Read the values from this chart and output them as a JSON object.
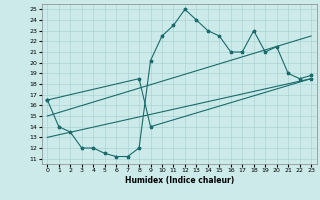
{
  "xlabel": "Humidex (Indice chaleur)",
  "bg_color": "#cceaea",
  "grid_color": "#aad4d4",
  "line_color": "#1a6b6b",
  "xlim": [
    -0.5,
    23.5
  ],
  "ylim": [
    10.5,
    25.5
  ],
  "yticks": [
    11,
    12,
    13,
    14,
    15,
    16,
    17,
    18,
    19,
    20,
    21,
    22,
    23,
    24,
    25
  ],
  "xticks": [
    0,
    1,
    2,
    3,
    4,
    5,
    6,
    7,
    8,
    9,
    10,
    11,
    12,
    13,
    14,
    15,
    16,
    17,
    18,
    19,
    20,
    21,
    22,
    23
  ],
  "curve1_x": [
    0,
    1,
    2,
    3,
    4,
    5,
    6,
    7,
    8,
    9,
    10,
    11,
    12,
    13,
    14,
    15,
    16,
    17,
    18,
    19,
    20,
    21,
    22,
    23
  ],
  "curve1_y": [
    16.5,
    14.0,
    13.5,
    12.0,
    12.0,
    11.5,
    11.2,
    11.2,
    12.0,
    20.2,
    22.5,
    23.5,
    25.0,
    24.0,
    23.0,
    22.5,
    21.0,
    21.0,
    23.0,
    21.0,
    21.5,
    19.0,
    18.5,
    18.8
  ],
  "curve2_x": [
    0,
    8,
    9,
    23
  ],
  "curve2_y": [
    16.5,
    18.5,
    14.0,
    18.5
  ],
  "line1_x": [
    0,
    23
  ],
  "line1_y": [
    15.0,
    22.5
  ],
  "line2_x": [
    0,
    23
  ],
  "line2_y": [
    13.0,
    18.5
  ]
}
